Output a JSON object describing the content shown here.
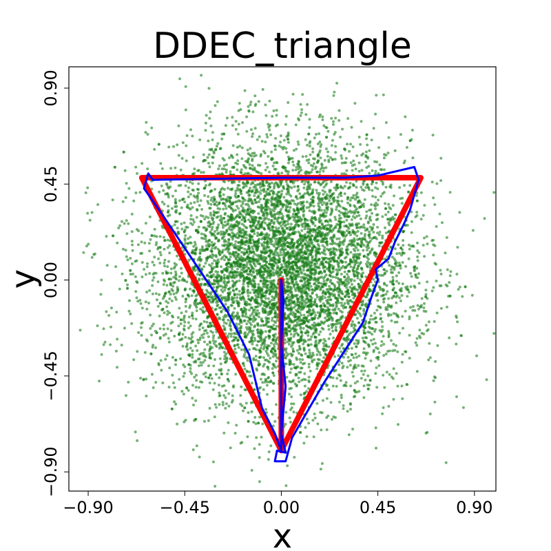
{
  "chart_data": {
    "type": "scatter",
    "title": "DDEC_triangle",
    "xlabel": "x",
    "ylabel": "y",
    "xlim": [
      -0.99,
      1.0
    ],
    "ylim": [
      -0.99,
      1.0
    ],
    "xticks": [
      -0.9,
      -0.45,
      0.0,
      0.45,
      0.9
    ],
    "yticks": [
      -0.9,
      -0.45,
      0.0,
      0.45,
      0.9
    ],
    "xtick_labels": [
      "−0.90",
      "−0.45",
      "0.00",
      "0.45",
      "0.90"
    ],
    "ytick_labels": [
      "−0.90",
      "−0.45",
      "0.00",
      "0.45",
      "0.90"
    ],
    "grid": false,
    "scatter": {
      "color": "#1a7f1a",
      "approx_count": 7000,
      "center": [
        0.0,
        0.05
      ],
      "spread_sd": 0.3
    },
    "series": [
      {
        "color": "#ff0000",
        "points": [
          [
            0.0,
            0.0
          ],
          [
            0.0,
            -0.8
          ],
          [
            0.65,
            0.48
          ],
          [
            -0.65,
            0.48
          ],
          [
            0.0,
            -0.8
          ]
        ]
      },
      {
        "color": "#0000ff",
        "points": [
          [
            0.0,
            0.0
          ],
          [
            0.01,
            -0.1
          ],
          [
            0.0,
            -0.3
          ],
          [
            0.02,
            -0.5
          ],
          [
            0.0,
            -0.72
          ],
          [
            0.02,
            -0.81
          ],
          [
            -0.02,
            -0.8
          ],
          [
            -0.03,
            -0.85
          ],
          [
            0.02,
            -0.85
          ],
          [
            0.05,
            -0.74
          ],
          [
            0.2,
            -0.48
          ],
          [
            0.38,
            -0.2
          ],
          [
            0.42,
            -0.08
          ],
          [
            0.45,
            0.0
          ],
          [
            0.44,
            0.05
          ],
          [
            0.5,
            0.1
          ],
          [
            0.53,
            0.18
          ],
          [
            0.57,
            0.26
          ],
          [
            0.6,
            0.33
          ],
          [
            0.64,
            0.47
          ],
          [
            0.62,
            0.53
          ],
          [
            0.45,
            0.49
          ],
          [
            0.3,
            0.48
          ],
          [
            0.0,
            0.48
          ],
          [
            -0.3,
            0.475
          ],
          [
            -0.6,
            0.47
          ],
          [
            -0.62,
            0.5
          ],
          [
            -0.64,
            0.43
          ],
          [
            -0.55,
            0.3
          ],
          [
            -0.45,
            0.15
          ],
          [
            -0.35,
            0.0
          ],
          [
            -0.25,
            -0.15
          ],
          [
            -0.15,
            -0.35
          ],
          [
            -0.09,
            -0.6
          ],
          [
            -0.03,
            -0.72
          ],
          [
            0.0,
            -0.8
          ],
          [
            0.0,
            0.0
          ]
        ]
      }
    ]
  }
}
